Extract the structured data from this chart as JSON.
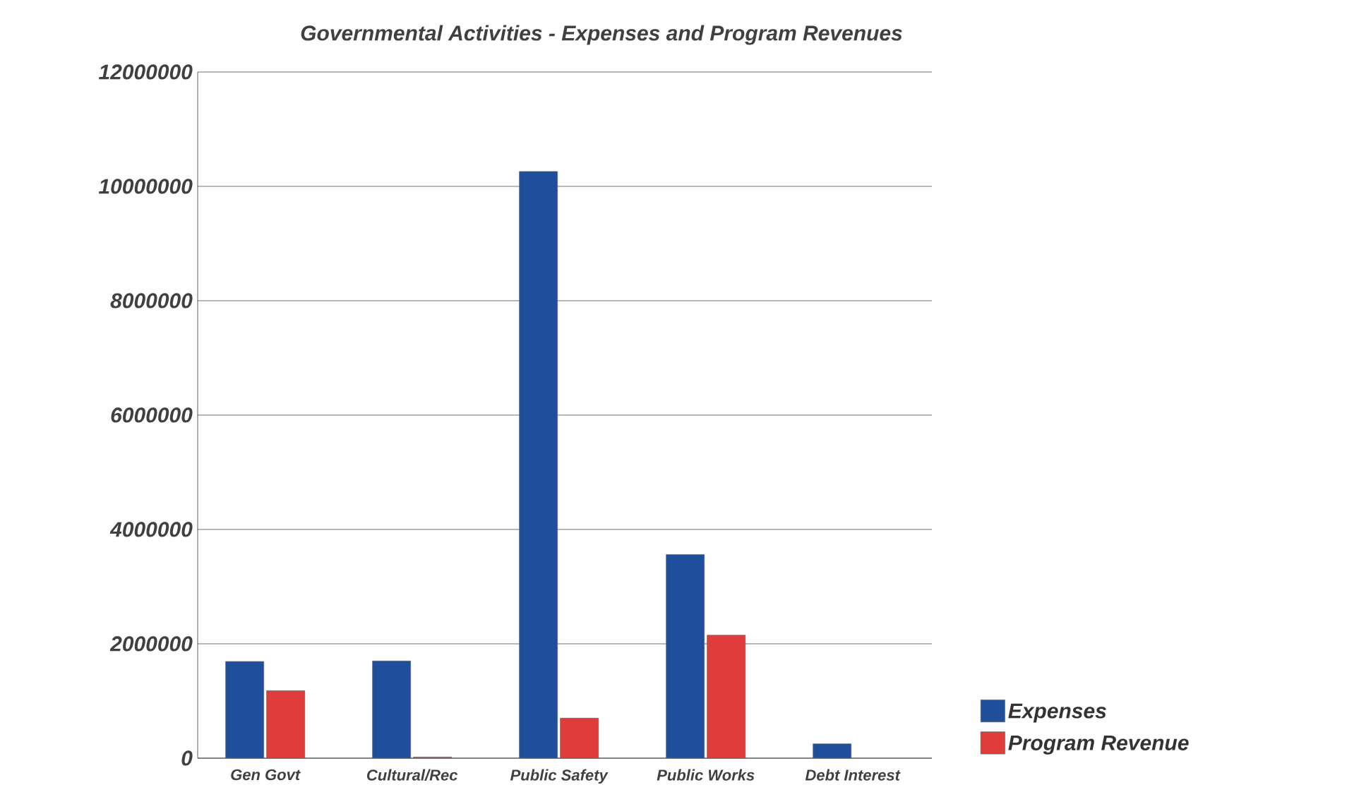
{
  "chart_data": {
    "type": "bar",
    "title": "Governmental Activities - Expenses and Program Revenues",
    "categories": [
      "Gen Govt",
      "Cultural/Rec",
      "Public Safety",
      "Public Works",
      "Debt Interest"
    ],
    "series": [
      {
        "name": "Expenses",
        "color": "#1f4e9c",
        "values": [
          1690000,
          1700000,
          10260000,
          3560000,
          250000
        ]
      },
      {
        "name": "Program Revenue",
        "color": "#e03c3c",
        "values": [
          1180000,
          20000,
          700000,
          2150000,
          null
        ]
      }
    ],
    "ylim": [
      0,
      12000000
    ],
    "yticks": [
      0,
      2000000,
      4000000,
      6000000,
      8000000,
      10000000,
      12000000
    ],
    "grid": "y",
    "legend": "bottom right"
  }
}
